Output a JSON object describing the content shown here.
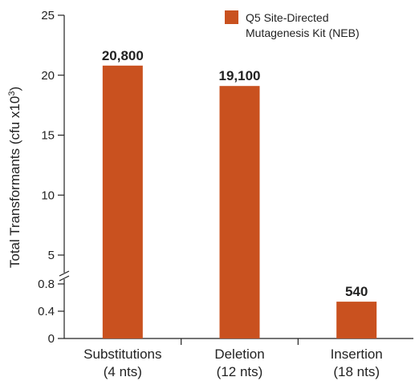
{
  "chart_data": {
    "type": "bar",
    "ylabel": "Total Transformants (cfu x10",
    "ylabel_sup": "3",
    "ylabel_end": ")",
    "categories": [
      {
        "line1": "Substitutions",
        "line2": "(4 nts)"
      },
      {
        "line1": "Deletion",
        "line2": "(12 nts)"
      },
      {
        "line1": "Insertion",
        "line2": "(18 nts)"
      }
    ],
    "series": [
      {
        "name_lines": [
          "Q5 Site-Directed",
          "Mutagenesis Kit (NEB)"
        ],
        "values": [
          20.8,
          19.1,
          0.54
        ],
        "data_labels": [
          "20,800",
          "19,100",
          "540"
        ],
        "color": "#c9511f"
      }
    ],
    "y_axis": {
      "broken": true,
      "lower_segment_range": [
        0,
        0.8
      ],
      "upper_segment_range": [
        5,
        25
      ],
      "lower_ticks": [
        {
          "value": 0,
          "label": "0"
        },
        {
          "value": 0.4,
          "label": "0.4"
        },
        {
          "value": 0.8,
          "label": "0.8"
        }
      ],
      "upper_ticks": [
        {
          "value": 5,
          "label": "5"
        },
        {
          "value": 10,
          "label": "10"
        },
        {
          "value": 15,
          "label": "15"
        },
        {
          "value": 20,
          "label": "20"
        },
        {
          "value": 25,
          "label": "25"
        }
      ]
    },
    "grid": false,
    "legend_position": "top-right"
  }
}
